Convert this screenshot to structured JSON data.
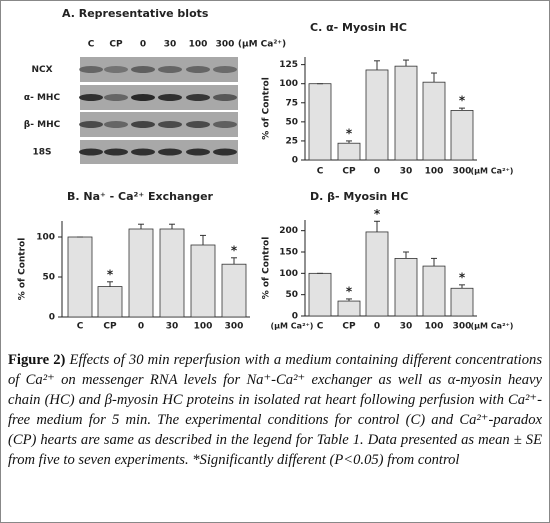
{
  "blots": {
    "title": "A.  Representative blots",
    "lanes": [
      "C",
      "CP",
      "0",
      "30",
      "100",
      "300"
    ],
    "unit": "(μM Ca²⁺)",
    "rows": [
      "NCX",
      "α- MHC",
      "β- MHC",
      "18S"
    ]
  },
  "chart_data": [
    {
      "type": "bar",
      "title": "C.  α- Myosin HC",
      "ylabel": "% of Control",
      "xlabel": "(μM Ca²⁺)",
      "categories": [
        "C",
        "CP",
        "0",
        "30",
        "100",
        "300"
      ],
      "values": [
        100,
        22,
        118,
        123,
        102,
        65
      ],
      "errors": [
        0,
        3,
        12,
        8,
        12,
        3
      ],
      "markers": [
        null,
        "*",
        null,
        null,
        null,
        "*"
      ],
      "ylim": [
        0,
        135
      ],
      "yticks": [
        0,
        25,
        50,
        75,
        100,
        125
      ],
      "color": "#e2e2e2"
    },
    {
      "type": "bar",
      "title": "B.  Na⁺ - Ca²⁺ Exchanger",
      "ylabel": "% of Control",
      "xlabel": "(μM Ca²⁺)",
      "categories": [
        "C",
        "CP",
        "0",
        "30",
        "100",
        "300"
      ],
      "values": [
        100,
        38,
        110,
        110,
        90,
        66
      ],
      "errors": [
        0,
        6,
        6,
        6,
        12,
        8
      ],
      "markers": [
        null,
        "*",
        null,
        null,
        null,
        "*"
      ],
      "ylim": [
        0,
        120
      ],
      "yticks": [
        0,
        50,
        100
      ],
      "color": "#e2e2e2"
    },
    {
      "type": "bar",
      "title": "D.  β- Myosin HC",
      "ylabel": "% of Control",
      "xlabel": "(μM Ca²⁺)",
      "categories": [
        "C",
        "CP",
        "0",
        "30",
        "100",
        "300"
      ],
      "values": [
        100,
        35,
        197,
        135,
        117,
        65
      ],
      "errors": [
        0,
        5,
        25,
        15,
        18,
        8
      ],
      "markers": [
        null,
        "*",
        "*",
        null,
        null,
        "*"
      ],
      "ylim": [
        0,
        225
      ],
      "yticks": [
        0,
        50,
        100,
        150,
        200
      ],
      "color": "#e2e2e2"
    }
  ],
  "caption": {
    "label": "Figure 2)",
    "text": "Effects of 30 min reperfusion with a medium containing different concentrations of Ca²⁺ on messenger RNA levels for Na⁺-Ca²⁺ exchanger as well as α-myosin heavy chain (HC) and β-myosin HC proteins in isolated rat heart following perfusion with Ca²⁺-free medium for 5 min. The experimental conditions for control (C) and Ca²⁺-paradox (CP) hearts are same as described in the legend for Table 1. Data presented as mean ± SE from five to seven experiments. *Significantly different (P&lt;0.05) from control"
  }
}
